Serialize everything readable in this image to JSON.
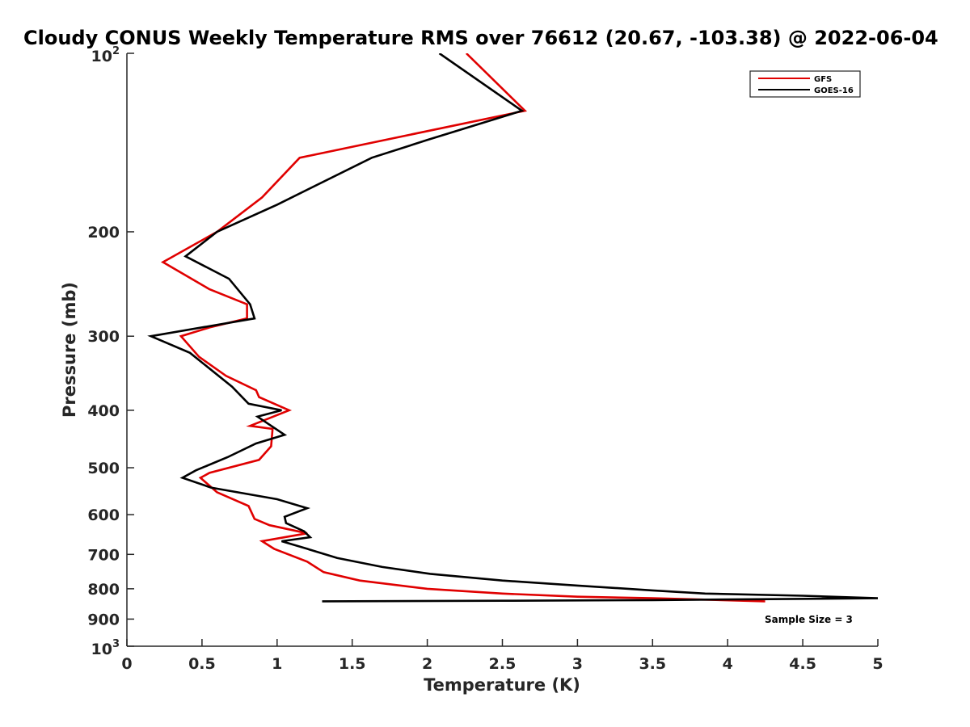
{
  "chart_data": {
    "type": "line",
    "title": "Cloudy CONUS Weekly Temperature RMS over 76612 (20.67, -103.38) @ 2022-06-04",
    "xlabel": "Temperature (K)",
    "ylabel": "Pressure (mb)",
    "xlim": [
      0,
      5
    ],
    "ylim": [
      100,
      1000
    ],
    "yscale": "log",
    "y_reversed": true,
    "x_ticks": [
      "0",
      "0.5",
      "1",
      "1.5",
      "2",
      "2.5",
      "3",
      "3.5",
      "4",
      "4.5",
      "5"
    ],
    "y_ticks": [
      {
        "value": 100,
        "base": "10",
        "exp": "2"
      },
      {
        "value": 200,
        "label": "200"
      },
      {
        "value": 300,
        "label": "300"
      },
      {
        "value": 400,
        "label": "400"
      },
      {
        "value": 500,
        "label": "500"
      },
      {
        "value": 600,
        "label": "600"
      },
      {
        "value": 700,
        "label": "700"
      },
      {
        "value": 800,
        "label": "800"
      },
      {
        "value": 900,
        "label": "900"
      },
      {
        "value": 1000,
        "base": "10",
        "exp": "3"
      }
    ],
    "legend_position": "top-right",
    "annotation": "Sample Size = 3",
    "series": [
      {
        "name": "GFS",
        "color": "#e00000",
        "points": [
          [
            2.26,
            100
          ],
          [
            2.65,
            125
          ],
          [
            1.15,
            150
          ],
          [
            0.9,
            175
          ],
          [
            0.6,
            200
          ],
          [
            0.24,
            225
          ],
          [
            0.55,
            250
          ],
          [
            0.8,
            265
          ],
          [
            0.8,
            280
          ],
          [
            0.55,
            290
          ],
          [
            0.36,
            300
          ],
          [
            0.48,
            325
          ],
          [
            0.66,
            350
          ],
          [
            0.86,
            370
          ],
          [
            0.88,
            380
          ],
          [
            1.08,
            400
          ],
          [
            0.82,
            425
          ],
          [
            0.97,
            430
          ],
          [
            0.96,
            460
          ],
          [
            0.88,
            485
          ],
          [
            0.55,
            510
          ],
          [
            0.49,
            520
          ],
          [
            0.6,
            550
          ],
          [
            0.81,
            580
          ],
          [
            0.85,
            610
          ],
          [
            0.95,
            625
          ],
          [
            1.2,
            645
          ],
          [
            0.9,
            665
          ],
          [
            0.98,
            685
          ],
          [
            1.2,
            720
          ],
          [
            1.31,
            750
          ],
          [
            1.55,
            775
          ],
          [
            2.0,
            800
          ],
          [
            2.5,
            815
          ],
          [
            3.0,
            825
          ],
          [
            3.5,
            830
          ],
          [
            4.25,
            840
          ]
        ]
      },
      {
        "name": "GOES-16",
        "color": "#000000",
        "points": [
          [
            2.08,
            100
          ],
          [
            2.63,
            125
          ],
          [
            2.0,
            140
          ],
          [
            1.63,
            150
          ],
          [
            1.0,
            180
          ],
          [
            0.6,
            200
          ],
          [
            0.39,
            220
          ],
          [
            0.68,
            240
          ],
          [
            0.82,
            265
          ],
          [
            0.85,
            280
          ],
          [
            0.16,
            300
          ],
          [
            0.42,
            320
          ],
          [
            0.7,
            365
          ],
          [
            0.81,
            390
          ],
          [
            1.03,
            400
          ],
          [
            0.87,
            410
          ],
          [
            1.05,
            440
          ],
          [
            0.86,
            455
          ],
          [
            0.67,
            480
          ],
          [
            0.46,
            505
          ],
          [
            0.37,
            520
          ],
          [
            0.56,
            540
          ],
          [
            1.0,
            565
          ],
          [
            1.2,
            585
          ],
          [
            1.05,
            605
          ],
          [
            1.06,
            620
          ],
          [
            1.18,
            640
          ],
          [
            1.22,
            655
          ],
          [
            1.03,
            665
          ],
          [
            1.2,
            685
          ],
          [
            1.4,
            710
          ],
          [
            1.7,
            735
          ],
          [
            2.02,
            755
          ],
          [
            2.5,
            775
          ],
          [
            3.0,
            790
          ],
          [
            3.5,
            805
          ],
          [
            3.85,
            815
          ],
          [
            4.5,
            822
          ],
          [
            5.0,
            830
          ],
          [
            3.5,
            836
          ],
          [
            2.5,
            838
          ],
          [
            1.3,
            840
          ]
        ]
      }
    ]
  }
}
